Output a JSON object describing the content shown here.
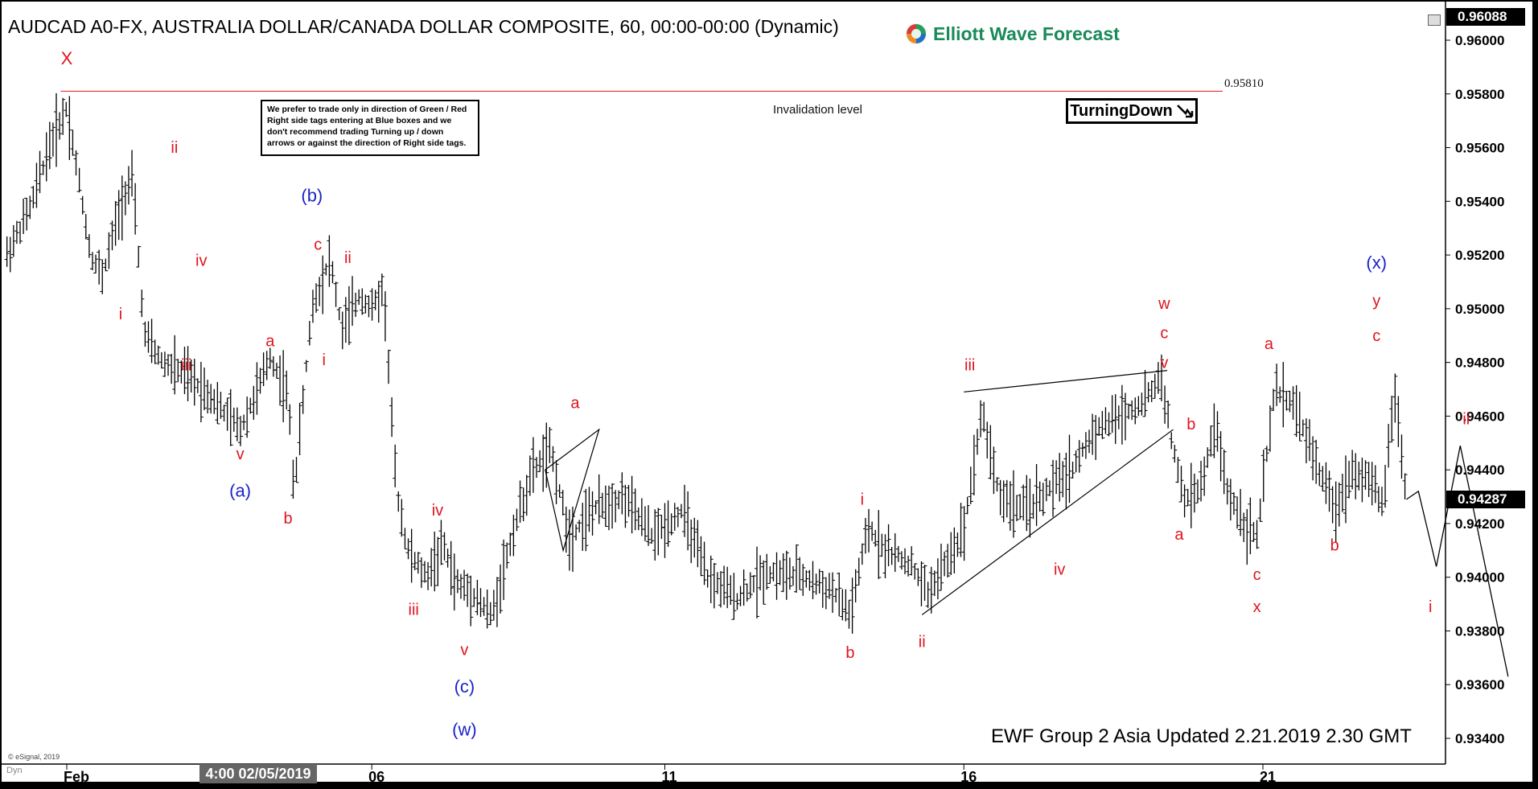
{
  "chart_title": "AUDCAD A0-FX, AUSTRALIA DOLLAR/CANADA DOLLAR COMPOSITE, 60, 00:00-00:00 (Dynamic)",
  "brand": {
    "name": "Elliott Wave Forecast"
  },
  "notice": "We prefer to trade only in direction of Green / Red Right side tags entering at Blue boxes and we don't recommend trading Turning up / down arrows or against the direction of Right side tags.",
  "turning_label": "TurningDown",
  "invalidation": {
    "label": "Invalidation level",
    "value": "0.95810"
  },
  "footer": "EWF Group 2 Asia Updated 2.21.2019 2.30 GMT",
  "copyright": "© eSignal, 2019",
  "dyn_label": "Dyn",
  "cursor_time": "4:00 02/05/2019",
  "price_tags": {
    "top": "0.96088",
    "current": "0.94287"
  },
  "colors": {
    "red": "#e0141e",
    "blue": "#1b24c8",
    "black": "#000000"
  },
  "chart_data": {
    "type": "line",
    "y_axis": {
      "ylim": [
        0.9326,
        0.9612
      ],
      "ticks": [
        "0.96000",
        "0.95800",
        "0.95600",
        "0.95400",
        "0.95200",
        "0.95000",
        "0.94800",
        "0.94600",
        "0.94400",
        "0.94200",
        "0.94000",
        "0.93800",
        "0.93600",
        "0.93400"
      ],
      "tick_values": [
        0.96,
        0.958,
        0.956,
        0.954,
        0.952,
        0.95,
        0.948,
        0.946,
        0.944,
        0.942,
        0.94,
        0.938,
        0.936,
        0.934
      ]
    },
    "x_axis": {
      "xlim": [
        -1.0,
        21.9
      ],
      "labels": [
        "Feb",
        "06",
        "11",
        "16",
        "21"
      ],
      "label_positions": [
        0,
        5.1,
        10,
        15,
        20
      ]
    },
    "grid": false,
    "price_path": [
      [
        -1.0,
        0.952
      ],
      [
        -0.6,
        0.9538
      ],
      [
        -0.3,
        0.956
      ],
      [
        0.0,
        0.9575
      ],
      [
        0.1,
        0.9562
      ],
      [
        0.4,
        0.952
      ],
      [
        0.6,
        0.9512
      ],
      [
        0.8,
        0.953
      ],
      [
        1.0,
        0.9545
      ],
      [
        1.1,
        0.9548
      ],
      [
        1.3,
        0.949
      ],
      [
        1.6,
        0.948
      ],
      [
        2.0,
        0.9475
      ],
      [
        2.4,
        0.9468
      ],
      [
        2.6,
        0.9462
      ],
      [
        2.9,
        0.9455
      ],
      [
        3.2,
        0.947
      ],
      [
        3.4,
        0.9482
      ],
      [
        3.7,
        0.9468
      ],
      [
        3.8,
        0.9432
      ],
      [
        4.1,
        0.95
      ],
      [
        4.4,
        0.9519
      ],
      [
        4.6,
        0.9492
      ],
      [
        4.9,
        0.9505
      ],
      [
        5.1,
        0.95
      ],
      [
        5.3,
        0.9508
      ],
      [
        5.5,
        0.9435
      ],
      [
        5.7,
        0.941
      ],
      [
        6.0,
        0.94
      ],
      [
        6.3,
        0.9412
      ],
      [
        6.5,
        0.9398
      ],
      [
        6.8,
        0.9394
      ],
      [
        7.1,
        0.9385
      ],
      [
        7.5,
        0.942
      ],
      [
        7.8,
        0.944
      ],
      [
        8.1,
        0.9447
      ],
      [
        8.4,
        0.9415
      ],
      [
        8.8,
        0.9425
      ],
      [
        9.3,
        0.943
      ],
      [
        9.8,
        0.9415
      ],
      [
        10.3,
        0.9425
      ],
      [
        10.7,
        0.94
      ],
      [
        11.2,
        0.9392
      ],
      [
        11.7,
        0.9402
      ],
      [
        12.3,
        0.94
      ],
      [
        12.8,
        0.9395
      ],
      [
        13.1,
        0.9386
      ],
      [
        13.4,
        0.9418
      ],
      [
        13.7,
        0.941
      ],
      [
        14.1,
        0.9405
      ],
      [
        14.4,
        0.9394
      ],
      [
        14.7,
        0.9405
      ],
      [
        15.0,
        0.9418
      ],
      [
        15.3,
        0.9462
      ],
      [
        15.6,
        0.943
      ],
      [
        16.0,
        0.9425
      ],
      [
        16.4,
        0.9432
      ],
      [
        16.8,
        0.944
      ],
      [
        17.2,
        0.9455
      ],
      [
        17.6,
        0.946
      ],
      [
        18.0,
        0.9465
      ],
      [
        18.3,
        0.9475
      ],
      [
        18.5,
        0.9447
      ],
      [
        18.7,
        0.9428
      ],
      [
        19.0,
        0.9435
      ],
      [
        19.2,
        0.9458
      ],
      [
        19.4,
        0.9432
      ],
      [
        19.7,
        0.942
      ],
      [
        19.9,
        0.9415
      ],
      [
        20.2,
        0.947
      ],
      [
        20.5,
        0.9465
      ],
      [
        20.9,
        0.9442
      ],
      [
        21.2,
        0.9425
      ],
      [
        21.5,
        0.944
      ],
      [
        21.8,
        0.9436
      ],
      [
        22.0,
        0.9426
      ],
      [
        22.2,
        0.947
      ],
      [
        22.4,
        0.9429
      ]
    ],
    "projection": [
      [
        22.6,
        0.9432
      ],
      [
        22.9,
        0.9404
      ],
      [
        23.3,
        0.9449
      ],
      [
        24.1,
        0.9363
      ]
    ],
    "invalidation_level": 0.9581,
    "current_price": 0.94287,
    "triangle_1": [
      [
        8.0,
        0.944
      ],
      [
        8.9,
        0.9455
      ],
      [
        8.3,
        0.941
      ]
    ],
    "wedge_top": [
      [
        15.0,
        0.9469
      ],
      [
        18.4,
        0.9477
      ]
    ],
    "wedge_bottom": [
      [
        14.3,
        0.9386
      ],
      [
        18.5,
        0.9455
      ]
    ],
    "annotations": [
      {
        "text": "X",
        "x": 0.0,
        "y": 0.9591,
        "color": "red",
        "size": 22
      },
      {
        "text": "ii",
        "x": 1.8,
        "y": 0.9558,
        "color": "red",
        "size": 20
      },
      {
        "text": "i",
        "x": 0.9,
        "y": 0.9496,
        "color": "red",
        "size": 20
      },
      {
        "text": "iv",
        "x": 2.25,
        "y": 0.9516,
        "color": "red",
        "size": 20
      },
      {
        "text": "iii",
        "x": 2.0,
        "y": 0.9477,
        "color": "red",
        "size": 20
      },
      {
        "text": "(b)",
        "x": 4.1,
        "y": 0.954,
        "color": "blue",
        "size": 22
      },
      {
        "text": "c",
        "x": 4.2,
        "y": 0.9522,
        "color": "red",
        "size": 20
      },
      {
        "text": "ii",
        "x": 4.7,
        "y": 0.9517,
        "color": "red",
        "size": 20
      },
      {
        "text": "a",
        "x": 3.4,
        "y": 0.9486,
        "color": "red",
        "size": 20
      },
      {
        "text": "i",
        "x": 4.3,
        "y": 0.9479,
        "color": "red",
        "size": 20
      },
      {
        "text": "v",
        "x": 2.9,
        "y": 0.9444,
        "color": "red",
        "size": 20
      },
      {
        "text": "(a)",
        "x": 2.9,
        "y": 0.943,
        "color": "blue",
        "size": 22
      },
      {
        "text": "b",
        "x": 3.7,
        "y": 0.942,
        "color": "red",
        "size": 20
      },
      {
        "text": "iv",
        "x": 6.2,
        "y": 0.9423,
        "color": "red",
        "size": 20
      },
      {
        "text": "iii",
        "x": 5.8,
        "y": 0.9386,
        "color": "red",
        "size": 20
      },
      {
        "text": "v",
        "x": 6.65,
        "y": 0.9371,
        "color": "red",
        "size": 20
      },
      {
        "text": "(c)",
        "x": 6.65,
        "y": 0.9357,
        "color": "blue",
        "size": 22
      },
      {
        "text": "(w)",
        "x": 6.65,
        "y": 0.9341,
        "color": "blue",
        "size": 22
      },
      {
        "text": "a",
        "x": 8.5,
        "y": 0.9463,
        "color": "red",
        "size": 20
      },
      {
        "text": "i",
        "x": 13.3,
        "y": 0.9427,
        "color": "red",
        "size": 20
      },
      {
        "text": "b",
        "x": 13.1,
        "y": 0.937,
        "color": "red",
        "size": 20
      },
      {
        "text": "ii",
        "x": 14.3,
        "y": 0.9374,
        "color": "red",
        "size": 20
      },
      {
        "text": "iii",
        "x": 15.1,
        "y": 0.9477,
        "color": "red",
        "size": 20
      },
      {
        "text": "iv",
        "x": 16.6,
        "y": 0.9401,
        "color": "red",
        "size": 20
      },
      {
        "text": "w",
        "x": 18.35,
        "y": 0.95,
        "color": "red",
        "size": 20
      },
      {
        "text": "c",
        "x": 18.35,
        "y": 0.9489,
        "color": "red",
        "size": 20
      },
      {
        "text": "v",
        "x": 18.35,
        "y": 0.9478,
        "color": "red",
        "size": 20
      },
      {
        "text": "b",
        "x": 18.8,
        "y": 0.9455,
        "color": "red",
        "size": 20
      },
      {
        "text": "a",
        "x": 18.6,
        "y": 0.9414,
        "color": "red",
        "size": 20
      },
      {
        "text": "c",
        "x": 19.9,
        "y": 0.9399,
        "color": "red",
        "size": 20
      },
      {
        "text": "x",
        "x": 19.9,
        "y": 0.9387,
        "color": "red",
        "size": 20
      },
      {
        "text": "a",
        "x": 20.1,
        "y": 0.9485,
        "color": "red",
        "size": 20
      },
      {
        "text": "(x)",
        "x": 21.9,
        "y": 0.9515,
        "color": "blue",
        "size": 22
      },
      {
        "text": "y",
        "x": 21.9,
        "y": 0.9501,
        "color": "red",
        "size": 20
      },
      {
        "text": "c",
        "x": 21.9,
        "y": 0.9488,
        "color": "red",
        "size": 20
      },
      {
        "text": "b",
        "x": 21.2,
        "y": 0.941,
        "color": "red",
        "size": 20
      },
      {
        "text": "ii",
        "x": 23.4,
        "y": 0.9457,
        "color": "red",
        "size": 20
      },
      {
        "text": "i",
        "x": 22.8,
        "y": 0.9387,
        "color": "red",
        "size": 20
      }
    ]
  }
}
